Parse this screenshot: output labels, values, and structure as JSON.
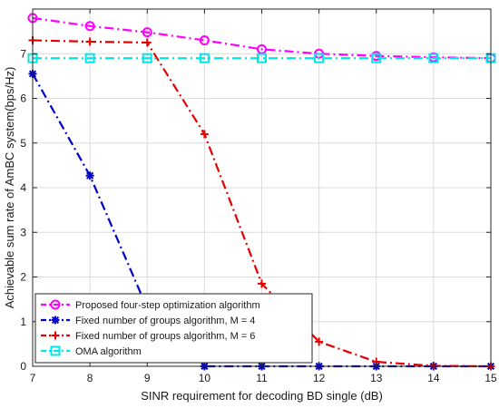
{
  "chart_data": {
    "type": "line",
    "title": "",
    "xlabel": "SINR requirement for decoding BD single (dB)",
    "ylabel": "Achievable sum rate of AmBC system(bps/Hz)",
    "xlim": [
      7,
      15
    ],
    "ylim": [
      0,
      8
    ],
    "xticks": [
      "7",
      "8",
      "9",
      "10",
      "11",
      "12",
      "13",
      "14",
      "15"
    ],
    "yticks": [
      "0",
      "1",
      "2",
      "3",
      "4",
      "5",
      "6",
      "7"
    ],
    "grid": true,
    "legend_position": "bottom-left",
    "x": [
      7,
      8,
      9,
      10,
      11,
      12,
      13,
      14,
      15
    ],
    "series": [
      {
        "name": "Proposed four-step optimization algorithm",
        "color": "#ff00ff",
        "marker": "circle",
        "line_style": "dash-dot",
        "values": [
          7.8,
          7.62,
          7.48,
          7.3,
          7.1,
          7.0,
          6.95,
          6.92,
          6.9
        ]
      },
      {
        "name": "Fixed number of groups algorithm, M = 4",
        "color": "#0000cc",
        "marker": "asterisk",
        "line_style": "dash-dot",
        "values": [
          6.55,
          4.27,
          1.3,
          0.0,
          0.0,
          0.0,
          0.0,
          0.0,
          0.0
        ]
      },
      {
        "name": "Fixed number of groups algorithm, M = 6",
        "color": "#e60000",
        "marker": "plus",
        "line_style": "dash-dot",
        "values": [
          7.3,
          7.27,
          7.25,
          5.2,
          1.85,
          0.55,
          0.1,
          0.01,
          0.0
        ]
      },
      {
        "name": "OMA algorithm",
        "color": "#00e5e5",
        "marker": "square",
        "line_style": "dash-dot",
        "values": [
          6.9,
          6.9,
          6.9,
          6.9,
          6.9,
          6.9,
          6.9,
          6.9,
          6.9
        ]
      }
    ]
  }
}
